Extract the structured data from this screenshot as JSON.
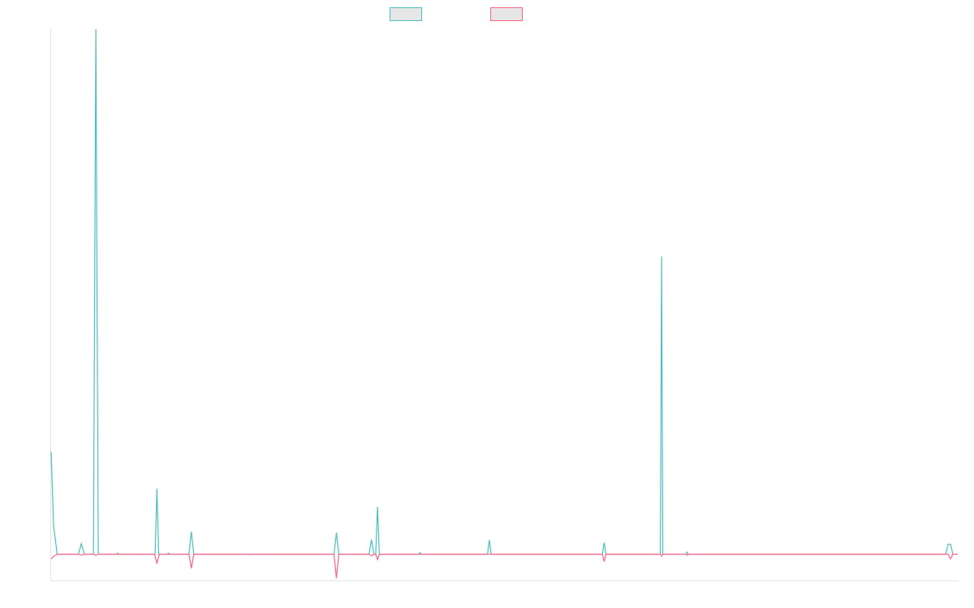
{
  "colors": {
    "series_a": "#4bc0c0",
    "series_b": "#ff6384",
    "axis": "#e5e5e5",
    "legend_fill": "#e6e6e6"
  },
  "chart_data": {
    "type": "line",
    "legend_position": "top-center",
    "grid": false,
    "x_count": 151,
    "ylim": [
      -0.05,
      1.0
    ],
    "series": [
      {
        "color": "#4bc0c0",
        "points": [
          [
            0,
            0.195
          ],
          [
            0.4,
            0.055
          ],
          [
            1,
            0.0
          ],
          [
            4.5,
            0.0
          ],
          [
            5,
            0.02
          ],
          [
            5.5,
            0.0
          ],
          [
            7,
            0.0
          ],
          [
            7.4,
            1.0
          ],
          [
            7.8,
            0.0
          ],
          [
            10.8,
            0.0
          ],
          [
            11,
            0.002
          ],
          [
            11.2,
            0.0
          ],
          [
            17.2,
            0.0
          ],
          [
            17.5,
            0.125
          ],
          [
            17.8,
            0.0
          ],
          [
            19.2,
            0.0
          ],
          [
            19.4,
            0.002
          ],
          [
            19.6,
            0.0
          ],
          [
            22.8,
            0.0
          ],
          [
            23.2,
            0.043
          ],
          [
            23.6,
            0.0
          ],
          [
            46.8,
            0.0
          ],
          [
            47.2,
            0.041
          ],
          [
            47.6,
            0.0
          ],
          [
            52.6,
            0.0
          ],
          [
            53,
            0.028
          ],
          [
            53.4,
            0.0
          ],
          [
            53.7,
            0.0
          ],
          [
            54,
            0.09
          ],
          [
            54.3,
            0.0
          ],
          [
            60.8,
            0.0
          ],
          [
            61,
            0.003
          ],
          [
            61.2,
            0.0
          ],
          [
            72.2,
            0.0
          ],
          [
            72.5,
            0.027
          ],
          [
            72.8,
            0.0
          ],
          [
            91.2,
            0.0
          ],
          [
            91.5,
            0.022
          ],
          [
            91.8,
            0.0
          ],
          [
            100.8,
            0.0
          ],
          [
            101,
            0.567
          ],
          [
            101.2,
            0.0
          ],
          [
            105,
            0.0
          ],
          [
            105.2,
            0.004
          ],
          [
            105.4,
            0.0
          ],
          [
            148,
            0.0
          ],
          [
            148.4,
            0.019
          ],
          [
            148.8,
            0.019
          ],
          [
            149.2,
            0.0
          ],
          [
            150,
            0.0
          ]
        ]
      },
      {
        "color": "#ff6384",
        "points": [
          [
            0,
            -0.009
          ],
          [
            0.5,
            -0.003
          ],
          [
            1,
            0.0
          ],
          [
            4.5,
            0.0
          ],
          [
            5,
            -0.002
          ],
          [
            5.5,
            0.0
          ],
          [
            7,
            0.0
          ],
          [
            7.4,
            -0.002
          ],
          [
            7.8,
            0.0
          ],
          [
            17.1,
            0.0
          ],
          [
            17.5,
            -0.017
          ],
          [
            17.9,
            0.0
          ],
          [
            22.8,
            0.0
          ],
          [
            23.2,
            -0.027
          ],
          [
            23.6,
            0.0
          ],
          [
            32.8,
            0.0
          ],
          [
            33,
            -0.001
          ],
          [
            33.2,
            0.0
          ],
          [
            46.8,
            0.0
          ],
          [
            47.2,
            -0.046
          ],
          [
            47.6,
            0.0
          ],
          [
            52.6,
            0.0
          ],
          [
            53,
            -0.003
          ],
          [
            53.4,
            0.0
          ],
          [
            53.7,
            0.0
          ],
          [
            54,
            -0.01
          ],
          [
            54.3,
            0.0
          ],
          [
            91.2,
            0.0
          ],
          [
            91.5,
            -0.014
          ],
          [
            91.8,
            0.0
          ],
          [
            100.8,
            0.0
          ],
          [
            101,
            -0.004
          ],
          [
            101.2,
            0.0
          ],
          [
            105,
            0.0
          ],
          [
            105.2,
            -0.002
          ],
          [
            105.4,
            0.0
          ],
          [
            148.4,
            0.0
          ],
          [
            148.8,
            -0.009
          ],
          [
            149.2,
            0.0
          ],
          [
            150,
            0.0
          ]
        ]
      }
    ]
  }
}
